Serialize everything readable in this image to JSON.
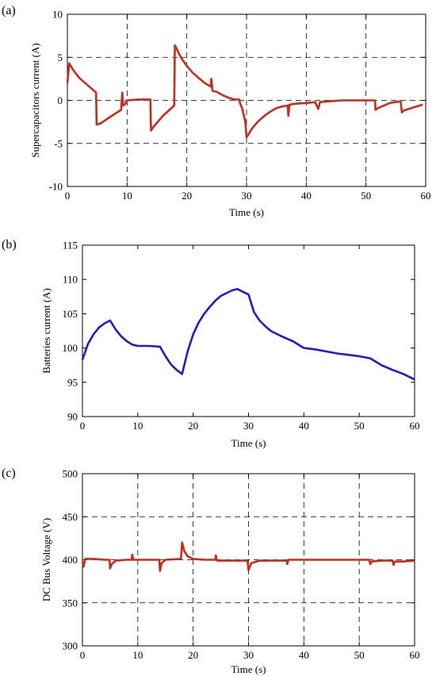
{
  "chart_data": [
    {
      "type": "line",
      "panel_label": "(a)",
      "xlabel": "Time (s)",
      "ylabel": "Supercapacitors current (A)",
      "xlim": [
        0,
        60
      ],
      "ylim": [
        -10,
        10
      ],
      "xticks": [
        0,
        10,
        20,
        30,
        40,
        50,
        60
      ],
      "yticks": [
        -10,
        -5,
        0,
        5,
        10
      ],
      "grid": true,
      "series": [
        {
          "color": "#cc2a1a",
          "x": [
            0,
            0.3,
            1,
            2,
            3,
            4,
            4.8,
            4.9,
            5.5,
            7,
            9,
            9.2,
            9.3,
            9.6,
            10,
            12,
            13.9,
            14,
            14.5,
            16,
            17.9,
            18,
            18.3,
            19,
            20,
            21,
            22,
            23,
            24,
            24.1,
            24.3,
            25,
            26,
            27,
            28,
            28.8,
            28.9,
            29.3,
            29.8,
            30,
            31,
            32,
            33,
            34,
            35,
            36,
            36.9,
            37,
            37.2,
            38,
            40,
            41.5,
            42,
            42.3,
            44,
            46,
            48,
            50,
            51.5,
            51.6,
            52,
            54,
            55.8,
            56,
            56.3,
            58,
            59.5
          ],
          "y": [
            2.0,
            4.3,
            3.5,
            2.6,
            2.0,
            1.4,
            0.9,
            -2.8,
            -2.7,
            -2.0,
            -1.1,
            0.9,
            -0.6,
            -0.5,
            0.0,
            0.1,
            0.1,
            -3.5,
            -3.0,
            -1.8,
            -0.6,
            6.4,
            6.0,
            5.0,
            4.0,
            3.2,
            2.6,
            2.0,
            1.6,
            2.5,
            1.1,
            1.0,
            0.6,
            0.3,
            0.1,
            0.1,
            -0.3,
            -1.0,
            -2.5,
            -4.3,
            -3.2,
            -2.4,
            -1.8,
            -1.3,
            -0.9,
            -0.7,
            -0.6,
            -1.8,
            -0.5,
            -0.4,
            -0.3,
            -0.2,
            -1.0,
            -0.2,
            -0.1,
            0.0,
            0.0,
            0.0,
            0.0,
            -1.1,
            -0.9,
            -0.3,
            -0.1,
            -1.4,
            -1.2,
            -0.8,
            -0.5
          ]
        }
      ]
    },
    {
      "type": "line",
      "panel_label": "(b)",
      "xlabel": "Time (s)",
      "ylabel": "Batteries current (A)",
      "xlim": [
        0,
        60
      ],
      "ylim": [
        90,
        115
      ],
      "xticks": [
        0,
        10,
        20,
        30,
        40,
        50,
        60
      ],
      "yticks": [
        90,
        95,
        100,
        105,
        110,
        115
      ],
      "grid": false,
      "series": [
        {
          "color": "#1a1adb",
          "x": [
            0,
            1,
            2,
            3,
            4,
            5,
            6,
            7,
            8,
            9,
            10,
            12,
            14,
            15,
            16,
            17,
            18,
            19,
            20,
            21,
            22,
            23,
            24,
            25,
            26,
            27,
            28,
            29,
            30,
            31,
            32,
            33,
            34,
            35,
            36,
            38,
            40,
            42,
            44,
            46,
            48,
            50,
            52,
            54,
            56,
            58,
            60
          ],
          "y": [
            98.3,
            100.6,
            102.0,
            103.0,
            103.6,
            104.0,
            102.7,
            101.7,
            101.0,
            100.5,
            100.3,
            100.3,
            100.2,
            98.8,
            97.6,
            96.8,
            96.2,
            99.5,
            102.0,
            103.7,
            105.0,
            106.0,
            106.9,
            107.6,
            108.0,
            108.4,
            108.6,
            108.2,
            107.8,
            105.2,
            104.0,
            103.2,
            102.5,
            102.1,
            101.7,
            101.0,
            100.0,
            99.8,
            99.5,
            99.2,
            99.0,
            98.8,
            98.5,
            97.5,
            96.8,
            96.2,
            95.4
          ]
        }
      ]
    },
    {
      "type": "line",
      "panel_label": "(c)",
      "xlabel": "Time (s)",
      "ylabel": "DC Bus Voltage (V)",
      "xlim": [
        0,
        60
      ],
      "ylim": [
        300,
        500
      ],
      "xticks": [
        0,
        10,
        20,
        30,
        40,
        50,
        60
      ],
      "yticks": [
        300,
        350,
        400,
        450,
        500
      ],
      "grid": true,
      "series": [
        {
          "color": "#cc2a1a",
          "x": [
            0,
            0.2,
            0.5,
            2,
            4,
            4.9,
            5.0,
            5.3,
            6,
            8,
            8.9,
            9.0,
            9.2,
            10,
            12,
            13.9,
            14.0,
            14.3,
            15,
            17.8,
            18.0,
            18.4,
            19,
            20,
            22,
            24,
            24.1,
            24.3,
            26,
            28,
            29.8,
            30.0,
            30.5,
            32,
            36,
            36.9,
            37.0,
            37.2,
            42,
            46,
            50,
            51.8,
            52.0,
            52.3,
            54,
            56,
            56.2,
            56.4,
            58,
            60
          ],
          "y": [
            398,
            392,
            401,
            401,
            400,
            400,
            390,
            395,
            399,
            400,
            400,
            406,
            400,
            400,
            400,
            400,
            387,
            396,
            400,
            401,
            420,
            410,
            404,
            401,
            400,
            400,
            405,
            399,
            399,
            399,
            399,
            388,
            396,
            399,
            399,
            399,
            395,
            400,
            400,
            400,
            400,
            400,
            395,
            398,
            399,
            399,
            394,
            398,
            398,
            399
          ]
        }
      ]
    }
  ]
}
